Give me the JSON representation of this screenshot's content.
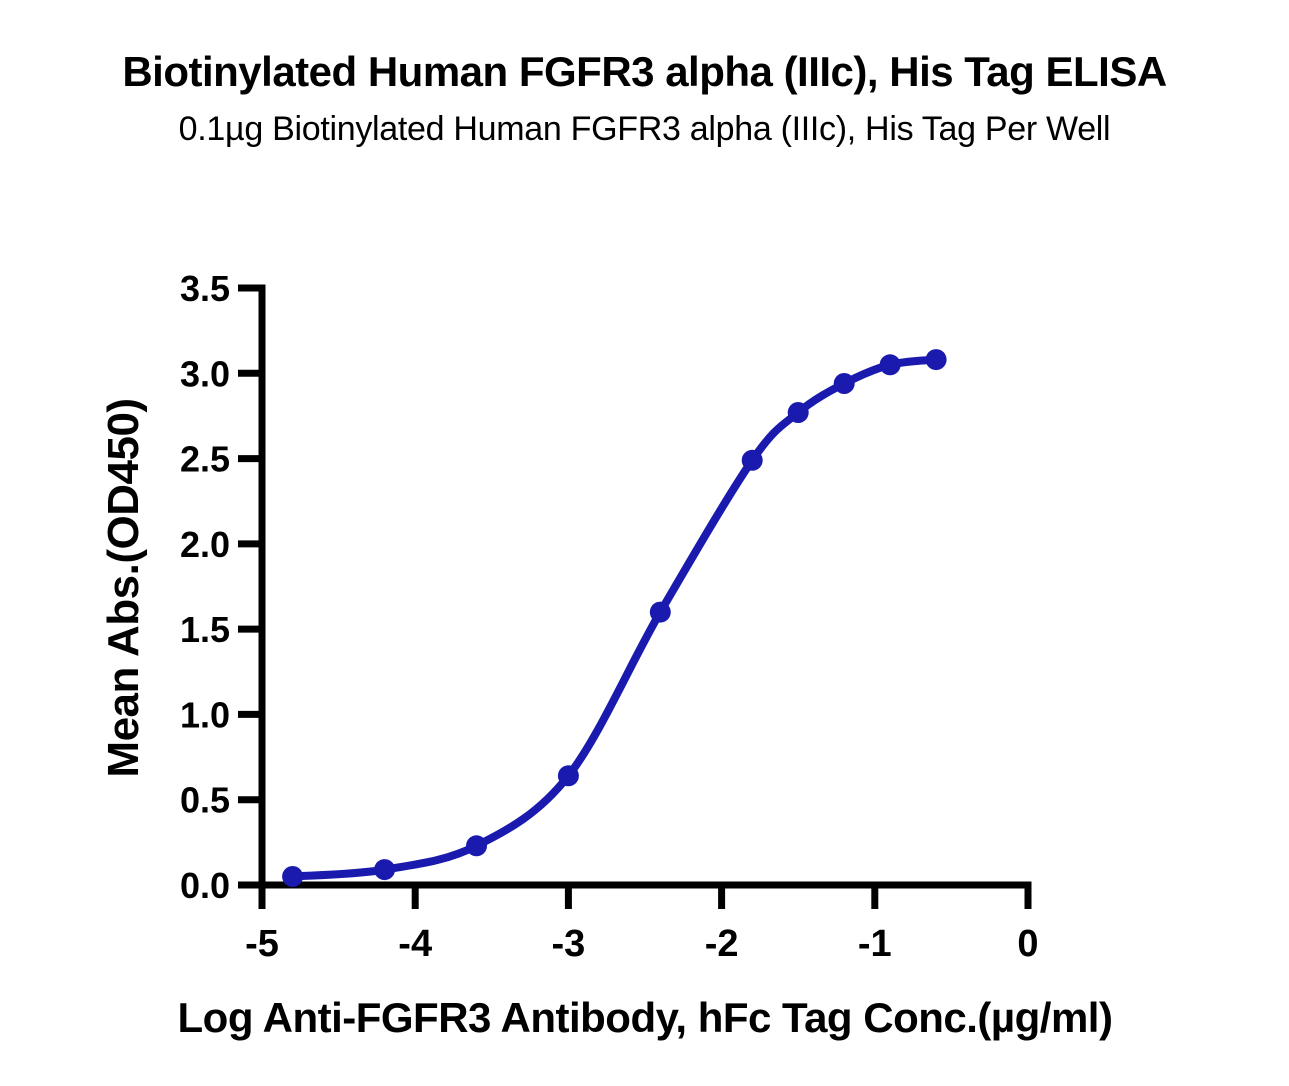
{
  "chart_data": {
    "type": "line",
    "title": "Biotinylated Human FGFR3 alpha (IIIc), His Tag ELISA",
    "subtitle": "0.1µg Biotinylated Human FGFR3 alpha (IIIc), His Tag Per Well",
    "xlabel": "Log Anti-FGFR3 Antibody, hFc Tag Conc.(µg/ml)",
    "ylabel": "Mean Abs.(OD450)",
    "series": [
      {
        "name": "Anti-FGFR3 Antibody, hFc Tag",
        "x": [
          -4.8,
          -4.2,
          -3.6,
          -3.0,
          -2.4,
          -1.8,
          -1.5,
          -1.2,
          -0.9,
          -0.6
        ],
        "y": [
          0.05,
          0.09,
          0.23,
          0.64,
          1.6,
          2.49,
          2.77,
          2.94,
          3.05,
          3.08
        ]
      }
    ],
    "xlim": [
      -5,
      0
    ],
    "ylim": [
      0,
      3.5
    ],
    "xticks": {
      "values": [
        -5,
        -4,
        -3,
        -2,
        -1,
        0
      ],
      "labels": [
        "-5",
        "-4",
        "-3",
        "-2",
        "-1",
        "0"
      ]
    },
    "yticks": {
      "values": [
        0,
        0.5,
        1.0,
        1.5,
        2.0,
        2.5,
        3.0,
        3.5
      ],
      "labels": [
        "0.0",
        "0.5",
        "1.0",
        "1.5",
        "2.0",
        "2.5",
        "3.0",
        "3.5"
      ]
    },
    "grid": false,
    "legend": "none",
    "marker": "circle",
    "colors": {
      "curve": "#1a1aae",
      "axis": "#000000",
      "text": "#000000",
      "background": "#ffffff"
    }
  }
}
